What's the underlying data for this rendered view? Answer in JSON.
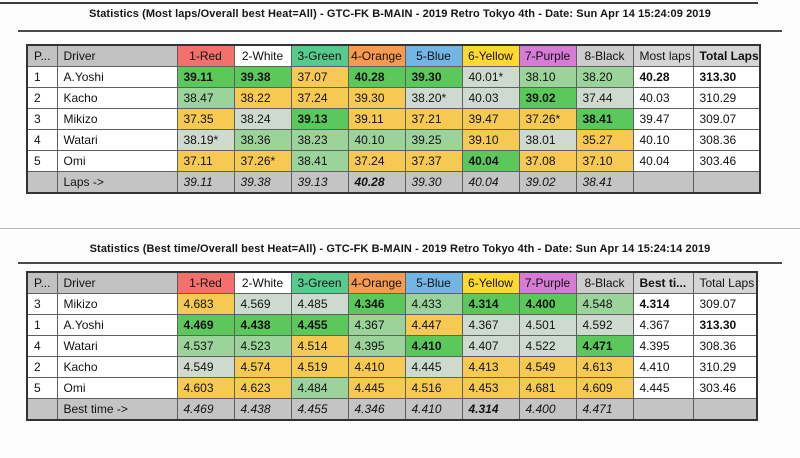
{
  "colors": {
    "cell_best": "#5bc85b",
    "cell_good": "#9bd39b",
    "cell_mid": "#cfdacf",
    "cell_bad": "#f6c952",
    "header_label_bg": "#c2c2c2",
    "header_stat_bg": "#d5d5d5",
    "footer_bg": "#c4c4c4",
    "heat_header_colors": [
      "#f3706b",
      "#ffffff",
      "#56cb8d",
      "#f89a50",
      "#73b5e5",
      "#ffd930",
      "#d67bd6",
      "#cccccc"
    ]
  },
  "tables": [
    {
      "title": "Statistics (Most laps/Overall best Heat=All) - GTC-FK B-MAIN - 2019 Retro Tokyo 4th - Date: Sun Apr 14 15:24:09 2019",
      "headers": {
        "pos": "P...",
        "driver": "Driver",
        "heats": [
          "1-Red",
          "2-White",
          "3-Green",
          "4-Orange",
          "5-Blue",
          "6-Yellow",
          "7-Purple",
          "8-Black"
        ],
        "stat": "Most laps",
        "total": "Total Laps",
        "stat_bold": false,
        "total_bold": true
      },
      "rows": [
        {
          "pos": "1",
          "driver": "A.Yoshi",
          "heats": [
            {
              "v": "39.11",
              "rank": "best"
            },
            {
              "v": "39.38",
              "rank": "best"
            },
            {
              "v": "37.07",
              "rank": "bad"
            },
            {
              "v": "40.28",
              "rank": "best"
            },
            {
              "v": "39.30",
              "rank": "best"
            },
            {
              "v": "40.01*",
              "rank": "mid"
            },
            {
              "v": "38.10",
              "rank": "good"
            },
            {
              "v": "38.20",
              "rank": "good"
            }
          ],
          "stat": "40.28",
          "stat_bold": true,
          "total": "313.30",
          "total_bold": true
        },
        {
          "pos": "2",
          "driver": "Kacho",
          "heats": [
            {
              "v": "38.47",
              "rank": "good"
            },
            {
              "v": "38.22",
              "rank": "bad"
            },
            {
              "v": "37.24",
              "rank": "bad"
            },
            {
              "v": "39.30",
              "rank": "bad"
            },
            {
              "v": "38.20*",
              "rank": "mid"
            },
            {
              "v": "40.03",
              "rank": "mid"
            },
            {
              "v": "39.02",
              "rank": "best"
            },
            {
              "v": "37.44",
              "rank": "mid"
            }
          ],
          "stat": "40.03",
          "stat_bold": false,
          "total": "310.29",
          "total_bold": false
        },
        {
          "pos": "3",
          "driver": "Mikizo",
          "heats": [
            {
              "v": "37.35",
              "rank": "bad"
            },
            {
              "v": "38.24",
              "rank": "mid"
            },
            {
              "v": "39.13",
              "rank": "best"
            },
            {
              "v": "39.11",
              "rank": "bad"
            },
            {
              "v": "37.21",
              "rank": "bad"
            },
            {
              "v": "39.47",
              "rank": "bad"
            },
            {
              "v": "37.26*",
              "rank": "bad"
            },
            {
              "v": "38.41",
              "rank": "best"
            }
          ],
          "stat": "39.47",
          "stat_bold": false,
          "total": "309.07",
          "total_bold": false
        },
        {
          "pos": "4",
          "driver": "Watari",
          "heats": [
            {
              "v": "38.19*",
              "rank": "mid"
            },
            {
              "v": "38.36",
              "rank": "good"
            },
            {
              "v": "38.23",
              "rank": "good"
            },
            {
              "v": "40.10",
              "rank": "good"
            },
            {
              "v": "39.25",
              "rank": "good"
            },
            {
              "v": "39.10",
              "rank": "bad"
            },
            {
              "v": "38.01",
              "rank": "mid"
            },
            {
              "v": "35.27",
              "rank": "bad"
            }
          ],
          "stat": "40.10",
          "stat_bold": false,
          "total": "308.36",
          "total_bold": false
        },
        {
          "pos": "5",
          "driver": "Omi",
          "heats": [
            {
              "v": "37.11",
              "rank": "bad"
            },
            {
              "v": "37.26*",
              "rank": "bad"
            },
            {
              "v": "38.41",
              "rank": "good"
            },
            {
              "v": "37.24",
              "rank": "bad"
            },
            {
              "v": "37.37",
              "rank": "bad"
            },
            {
              "v": "40.04",
              "rank": "best"
            },
            {
              "v": "37.08",
              "rank": "bad"
            },
            {
              "v": "37.10",
              "rank": "bad"
            }
          ],
          "stat": "40.04",
          "stat_bold": false,
          "total": "303.46",
          "total_bold": false
        }
      ],
      "footer": {
        "label": "Laps ->",
        "values": [
          "39.11",
          "39.38",
          "39.13",
          "40.28",
          "39.30",
          "40.04",
          "39.02",
          "38.41"
        ],
        "bold_index": 3
      }
    },
    {
      "title": "Statistics (Best time/Overall best Heat=All) - GTC-FK B-MAIN - 2019 Retro Tokyo 4th - Date: Sun Apr 14 15:24:14 2019",
      "headers": {
        "pos": "P...",
        "driver": "Driver",
        "heats": [
          "1-Red",
          "2-White",
          "3-Green",
          "4-Orange",
          "5-Blue",
          "6-Yellow",
          "7-Purple",
          "8-Black"
        ],
        "stat": "Best ti...",
        "total": "Total Laps",
        "stat_bold": true,
        "total_bold": false
      },
      "rows": [
        {
          "pos": "3",
          "driver": "Mikizo",
          "heats": [
            {
              "v": "4.683",
              "rank": "bad"
            },
            {
              "v": "4.569",
              "rank": "mid"
            },
            {
              "v": "4.485",
              "rank": "mid"
            },
            {
              "v": "4.346",
              "rank": "best"
            },
            {
              "v": "4.433",
              "rank": "good"
            },
            {
              "v": "4.314",
              "rank": "best"
            },
            {
              "v": "4.400",
              "rank": "best"
            },
            {
              "v": "4.548",
              "rank": "good"
            }
          ],
          "stat": "4.314",
          "stat_bold": true,
          "total": "309.07",
          "total_bold": false
        },
        {
          "pos": "1",
          "driver": "A.Yoshi",
          "heats": [
            {
              "v": "4.469",
              "rank": "best"
            },
            {
              "v": "4.438",
              "rank": "best"
            },
            {
              "v": "4.455",
              "rank": "best"
            },
            {
              "v": "4.367",
              "rank": "good"
            },
            {
              "v": "4.447",
              "rank": "bad"
            },
            {
              "v": "4.367",
              "rank": "mid"
            },
            {
              "v": "4.501",
              "rank": "mid"
            },
            {
              "v": "4.592",
              "rank": "mid"
            }
          ],
          "stat": "4.367",
          "stat_bold": false,
          "total": "313.30",
          "total_bold": true
        },
        {
          "pos": "4",
          "driver": "Watari",
          "heats": [
            {
              "v": "4.537",
              "rank": "good"
            },
            {
              "v": "4.523",
              "rank": "good"
            },
            {
              "v": "4.514",
              "rank": "bad"
            },
            {
              "v": "4.395",
              "rank": "good"
            },
            {
              "v": "4.410",
              "rank": "best"
            },
            {
              "v": "4.407",
              "rank": "mid"
            },
            {
              "v": "4.522",
              "rank": "mid"
            },
            {
              "v": "4.471",
              "rank": "best"
            }
          ],
          "stat": "4.395",
          "stat_bold": false,
          "total": "308.36",
          "total_bold": false
        },
        {
          "pos": "2",
          "driver": "Kacho",
          "heats": [
            {
              "v": "4.549",
              "rank": "mid"
            },
            {
              "v": "4.574",
              "rank": "bad"
            },
            {
              "v": "4.519",
              "rank": "bad"
            },
            {
              "v": "4.410",
              "rank": "bad"
            },
            {
              "v": "4.445",
              "rank": "mid"
            },
            {
              "v": "4.413",
              "rank": "bad"
            },
            {
              "v": "4.549",
              "rank": "bad"
            },
            {
              "v": "4.613",
              "rank": "bad"
            }
          ],
          "stat": "4.410",
          "stat_bold": false,
          "total": "310.29",
          "total_bold": false
        },
        {
          "pos": "5",
          "driver": "Omi",
          "heats": [
            {
              "v": "4.603",
              "rank": "bad"
            },
            {
              "v": "4.623",
              "rank": "bad"
            },
            {
              "v": "4.484",
              "rank": "good"
            },
            {
              "v": "4.445",
              "rank": "bad"
            },
            {
              "v": "4.516",
              "rank": "bad"
            },
            {
              "v": "4.453",
              "rank": "bad"
            },
            {
              "v": "4.681",
              "rank": "bad"
            },
            {
              "v": "4.609",
              "rank": "bad"
            }
          ],
          "stat": "4.445",
          "stat_bold": false,
          "total": "303.46",
          "total_bold": false
        }
      ],
      "footer": {
        "label": "Best time ->",
        "values": [
          "4.469",
          "4.438",
          "4.455",
          "4.346",
          "4.410",
          "4.314",
          "4.400",
          "4.471"
        ],
        "bold_index": 5
      }
    }
  ]
}
